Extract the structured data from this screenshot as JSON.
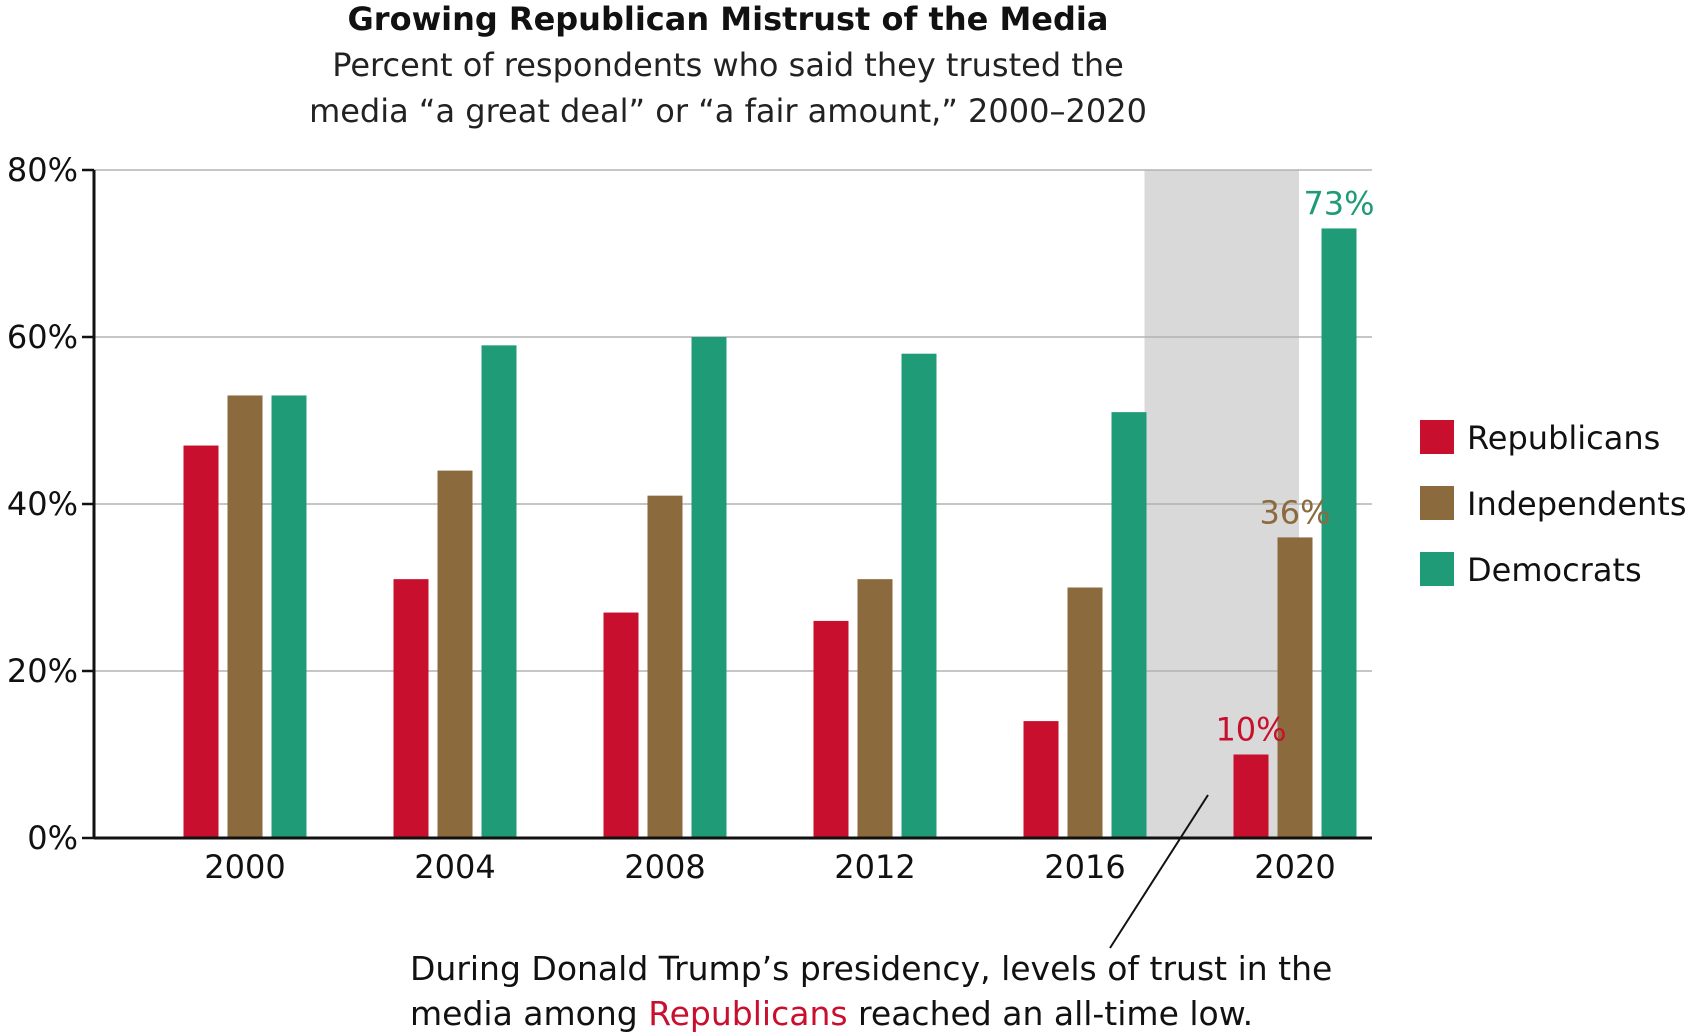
{
  "chart_data": {
    "type": "bar",
    "title": "Growing Republican Mistrust of the Media",
    "subtitle_line1": "Percent of respondents who said they trusted the",
    "subtitle_line2": "media “a great deal” or “a fair amount,” 2000–2020",
    "xlabel": "",
    "ylabel": "",
    "ylim": [
      0,
      80
    ],
    "y_ticks": [
      0,
      20,
      40,
      60,
      80
    ],
    "y_tick_labels": [
      "0%",
      "20%",
      "40%",
      "60%",
      "80%"
    ],
    "categories": [
      "2000",
      "2004",
      "2008",
      "2012",
      "2016",
      "2020"
    ],
    "series": [
      {
        "name": "Republicans",
        "color": "#c8102e",
        "values": [
          47,
          31,
          27,
          26,
          14,
          10
        ]
      },
      {
        "name": "Independents",
        "color": "#8b6b3d",
        "values": [
          53,
          44,
          41,
          31,
          30,
          36
        ]
      },
      {
        "name": "Democrats",
        "color": "#1f9b78",
        "values": [
          53,
          59,
          60,
          58,
          51,
          73
        ]
      }
    ],
    "data_labels": [
      {
        "series": 0,
        "category": 5,
        "text": "10%"
      },
      {
        "series": 1,
        "category": 5,
        "text": "36%"
      },
      {
        "series": 2,
        "category": 5,
        "text": "73%"
      }
    ],
    "highlight_category": "2020",
    "highlight_color": "#d9d9d9",
    "grid": true,
    "legend_position": "right",
    "annotation": {
      "line1": "During Donald Trump’s presidency, levels of trust in the",
      "line2_before": "media among ",
      "line2_highlight": "Republicans",
      "line2_after": " reached an all-time low.",
      "highlight_color": "#c8102e"
    }
  }
}
